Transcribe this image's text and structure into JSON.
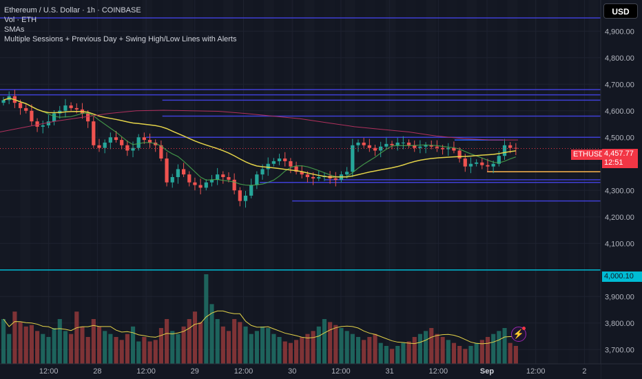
{
  "legend": {
    "symbol_line": "Ethereum / U.S. Dollar · 1h · COINBASE",
    "volume": "Vol · ETH",
    "smas": "SMAs",
    "indicator": "Multiple Sessions + Previous Day + Swing High/Low Lines with Alerts"
  },
  "toolbar": {
    "currency": "USD"
  },
  "tags": {
    "symbol": "ETHUSD",
    "last_price": "4,457.77",
    "countdown": "12:51",
    "level": "4,000.10"
  },
  "colors": {
    "background": "#131722",
    "up": "#26a69a",
    "down": "#ef5350",
    "sma_fast": "#4caf50",
    "sma_mid": "#e5d449",
    "sma_slow": "#b2315e",
    "session_lines": "#3f3fd6",
    "level_line": "#00bcd4",
    "orange_line": "#ffb74d"
  },
  "chart_data": {
    "type": "candlestick",
    "title": "Ethereum / U.S. Dollar · 1h · COINBASE",
    "ylim": [
      3690,
      4990
    ],
    "y_ticks": [
      4900,
      4800,
      4700,
      4600,
      4500,
      4400,
      4300,
      4200,
      4100,
      4000,
      3900,
      3800,
      3700
    ],
    "y_tick_labels": [
      "4,900.00",
      "4,800.00",
      "4,700.00",
      "4,600.00",
      "4,500.00",
      "4,400.00",
      "4,300.00",
      "4,200.00",
      "4,100.00",
      "4,000.00",
      "3,900.00",
      "3,800.00",
      "3,700.00"
    ],
    "x_labels": [
      "12:00",
      "28",
      "12:00",
      "29",
      "12:00",
      "30",
      "12:00",
      "31",
      "12:00",
      "Sep",
      "12:00",
      "2"
    ],
    "x_label_positions_hours": [
      12,
      24,
      36,
      48,
      60,
      72,
      84,
      96,
      108,
      120,
      132,
      144
    ],
    "close_series": [
      4640,
      4655,
      4630,
      4610,
      4600,
      4560,
      4540,
      4545,
      4560,
      4590,
      4600,
      4620,
      4610,
      4605,
      4590,
      4560,
      4470,
      4460,
      4480,
      4500,
      4490,
      4470,
      4450,
      4460,
      4500,
      4490,
      4480,
      4470,
      4420,
      4330,
      4350,
      4380,
      4360,
      4330,
      4320,
      4310,
      4330,
      4340,
      4360,
      4350,
      4340,
      4300,
      4260,
      4280,
      4320,
      4360,
      4380,
      4400,
      4410,
      4420,
      4410,
      4390,
      4370,
      4360,
      4350,
      4345,
      4350,
      4355,
      4345,
      4340,
      4360,
      4370,
      4470,
      4480,
      4470,
      4460,
      4450,
      4465,
      4475,
      4470,
      4480,
      4480,
      4470,
      4460,
      4465,
      4470,
      4465,
      4460,
      4455,
      4460,
      4450,
      4420,
      4390,
      4400,
      4405,
      4395,
      4390,
      4400,
      4430,
      4470,
      4460,
      4458
    ],
    "volume_series": [
      30,
      20,
      35,
      28,
      25,
      26,
      22,
      20,
      18,
      24,
      30,
      22,
      20,
      35,
      25,
      18,
      30,
      25,
      22,
      20,
      18,
      16,
      20,
      25,
      15,
      18,
      15,
      16,
      24,
      30,
      22,
      20,
      25,
      30,
      35,
      28,
      60,
      40,
      30,
      25,
      22,
      30,
      28,
      25,
      20,
      22,
      25,
      24,
      20,
      18,
      15,
      14,
      16,
      18,
      20,
      22,
      25,
      30,
      28,
      26,
      24,
      22,
      20,
      18,
      16,
      18,
      20,
      14,
      12,
      10,
      12,
      14,
      15,
      18,
      20,
      22,
      24,
      20,
      18,
      16,
      14,
      12,
      10,
      12,
      14,
      16,
      18,
      20,
      22,
      24,
      14,
      12
    ],
    "series": [
      {
        "name": "SMA fast",
        "values_hint": "follows price closely"
      },
      {
        "name": "SMA mid",
        "start": 4640,
        "end": 4430
      },
      {
        "name": "SMA slow",
        "start": 4520,
        "end": 4490
      }
    ],
    "horizontal_levels": [
      {
        "price": 4950,
        "color": "session"
      },
      {
        "price": 4680,
        "color": "session"
      },
      {
        "price": 4660,
        "color": "session"
      },
      {
        "price": 4640,
        "color": "session",
        "from_hour": 40
      },
      {
        "price": 4580,
        "color": "session",
        "from_hour": 40
      },
      {
        "price": 4500,
        "color": "session",
        "from_hour": 36
      },
      {
        "price": 4490,
        "color": "blue",
        "from_hour": 112,
        "to_hour": 124
      },
      {
        "price": 4370,
        "color": "orange",
        "from_hour": 120
      },
      {
        "price": 4340,
        "color": "session",
        "from_hour": 80
      },
      {
        "price": 4330,
        "color": "session",
        "from_hour": 64
      },
      {
        "price": 4260,
        "color": "session",
        "from_hour": 72
      },
      {
        "price": 4000.1,
        "color": "cyan"
      }
    ],
    "grid": true
  }
}
